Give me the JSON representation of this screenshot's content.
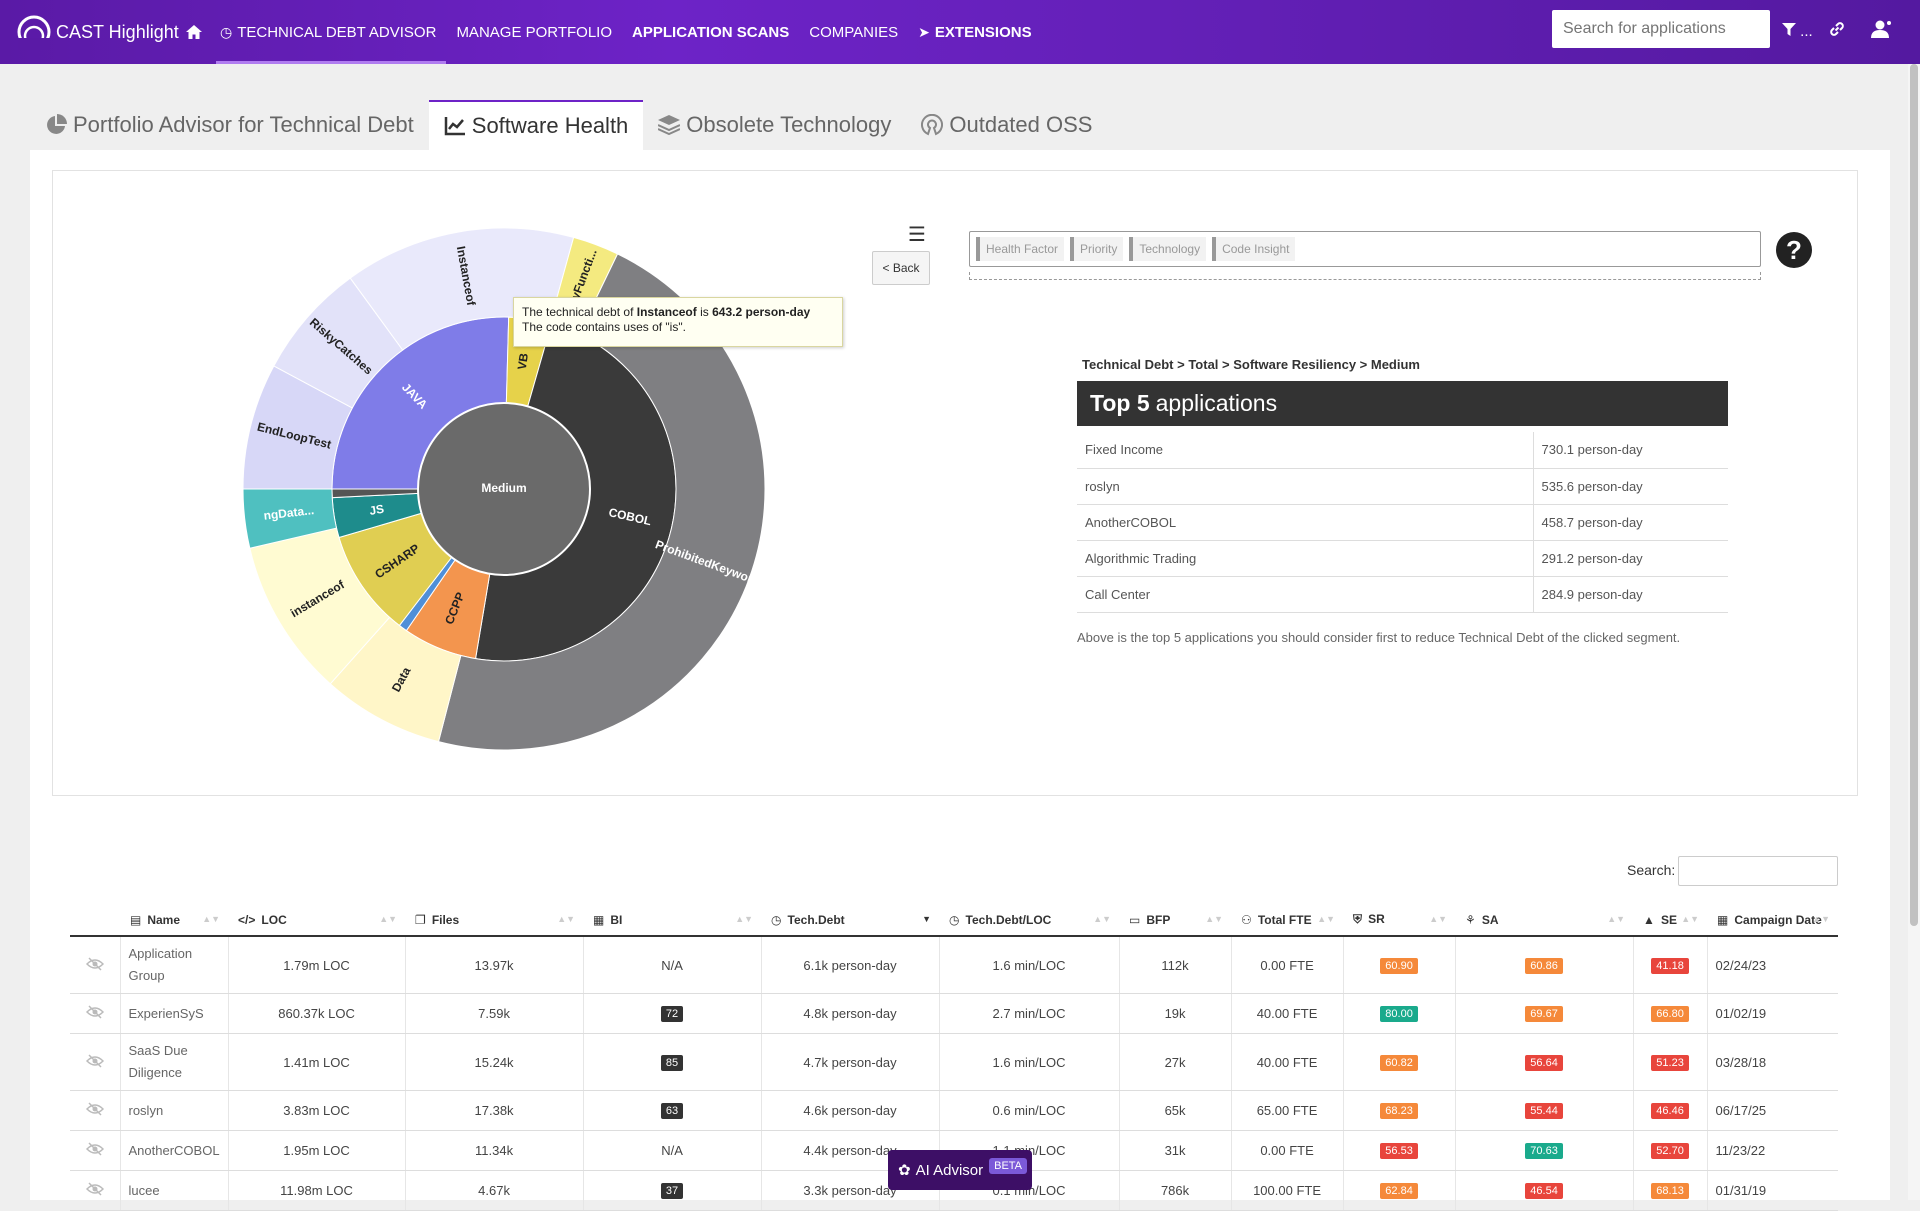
{
  "app": {
    "title": "CAST Highlight"
  },
  "nav": {
    "items": [
      {
        "label": "TECHNICAL DEBT ADVISOR",
        "active": true
      },
      {
        "label": "MANAGE PORTFOLIO"
      },
      {
        "label": "APPLICATION SCANS"
      },
      {
        "label": "COMPANIES"
      },
      {
        "label": "EXTENSIONS"
      }
    ],
    "search_placeholder": "Search for applications",
    "filter_suffix": "..."
  },
  "tabs": [
    {
      "label": "Portfolio Advisor for Technical Debt"
    },
    {
      "label": "Software Health",
      "active": true
    },
    {
      "label": "Obsolete Technology"
    },
    {
      "label": "Outdated OSS"
    }
  ],
  "chart_data": {
    "type": "sunburst",
    "center": "Medium",
    "inner_ring": [
      {
        "label": "JAVA",
        "value": 190,
        "color": "#7f7ce8"
      },
      {
        "label": "VB",
        "value": 30,
        "color": "#e6d24a"
      },
      {
        "label": "COBOL",
        "value": 360,
        "color": "#3a3a3a"
      },
      {
        "label": "CCPP",
        "value": 52,
        "color": "#f3954e"
      },
      {
        "label": "",
        "value": 6,
        "color": "#4f8fd8"
      },
      {
        "label": "CSHARP",
        "value": 75,
        "color": "#e0ce52"
      },
      {
        "label": "JS",
        "value": 28,
        "color": "#1e8c8c"
      },
      {
        "label": "",
        "value": 6,
        "color": "#555555"
      }
    ],
    "outer_ring": [
      {
        "label": "EndLoopTest",
        "value": 60,
        "color": "#d7d7f7"
      },
      {
        "label": "RiskyCatches",
        "value": 55,
        "color": "#e2e2f9"
      },
      {
        "label": "Instanceof",
        "value": 110,
        "color": "#e9e9fb"
      },
      {
        "label": "RiskyFuncti...",
        "value": 22,
        "color": "#f4ea80"
      },
      {
        "label": "ProhibitedKeyword",
        "value": 360,
        "color": "#7f7f82"
      },
      {
        "label": "Data",
        "value": 58,
        "color": "#fff6c8"
      },
      {
        "label": "instanceof",
        "value": 75,
        "color": "#fffbd2"
      },
      {
        "label": "ngData...",
        "value": 28,
        "color": "#4fc0c0"
      }
    ],
    "tooltip": {
      "prefix": "The technical debt of",
      "name": "Instanceof",
      "middle": "is",
      "value": "643.2 person-day",
      "description": "The code contains uses of \"is\"."
    }
  },
  "controls": {
    "back_label": "< Back",
    "chips": [
      "Health Factor",
      "Priority",
      "Technology",
      "Code Insight"
    ],
    "help": "?"
  },
  "top5": {
    "path": "Technical Debt > Total > Software Resiliency > Medium",
    "title_bold": "Top 5",
    "title_rest": "applications",
    "rows": [
      {
        "name": "Fixed Income",
        "value": "730.1 person-day"
      },
      {
        "name": "roslyn",
        "value": "535.6 person-day"
      },
      {
        "name": "AnotherCOBOL",
        "value": "458.7 person-day"
      },
      {
        "name": "Algorithmic Trading",
        "value": "291.2 person-day"
      },
      {
        "name": "Call Center",
        "value": "284.9 person-day"
      }
    ],
    "note": "Above is the top 5 applications you should consider first to reduce Technical Debt of the clicked segment."
  },
  "table": {
    "search_label": "Search:",
    "headers": [
      "Name",
      "LOC",
      "Files",
      "BI",
      "Tech.Debt",
      "Tech.Debt/LOC",
      "BFP",
      "Total FTE",
      "SR",
      "SA",
      "SE",
      "Campaign Date"
    ],
    "rows": [
      {
        "name": "Application Group",
        "loc": "1.79m LOC",
        "files": "13.97k",
        "bi": "N/A",
        "debt": "6.1k person-day",
        "debtloc": "1.6 min/LOC",
        "bfp": "112k",
        "fte": "0.00 FTE",
        "sr": "60.90",
        "sa": "60.86",
        "se": "41.18",
        "date": "02/24/23"
      },
      {
        "name": "ExperienSyS",
        "loc": "860.37k LOC",
        "files": "7.59k",
        "bi": "72",
        "debt": "4.8k person-day",
        "debtloc": "2.7 min/LOC",
        "bfp": "19k",
        "fte": "40.00 FTE",
        "sr": "80.00",
        "sa": "69.67",
        "se": "66.80",
        "date": "01/02/19"
      },
      {
        "name": "SaaS Due Diligence",
        "loc": "1.41m LOC",
        "files": "15.24k",
        "bi": "85",
        "debt": "4.7k person-day",
        "debtloc": "1.6 min/LOC",
        "bfp": "27k",
        "fte": "40.00 FTE",
        "sr": "60.82",
        "sa": "56.64",
        "se": "51.23",
        "date": "03/28/18"
      },
      {
        "name": "roslyn",
        "loc": "3.83m LOC",
        "files": "17.38k",
        "bi": "63",
        "debt": "4.6k person-day",
        "debtloc": "0.6 min/LOC",
        "bfp": "65k",
        "fte": "65.00 FTE",
        "sr": "68.23",
        "sa": "55.44",
        "se": "46.46",
        "date": "06/17/25"
      },
      {
        "name": "AnotherCOBOL",
        "loc": "1.95m LOC",
        "files": "11.34k",
        "bi": "N/A",
        "debt": "4.4k person-day",
        "debtloc": "1.1 min/LOC",
        "bfp": "31k",
        "fte": "0.00 FTE",
        "sr": "56.53",
        "sa": "70.63",
        "se": "52.70",
        "date": "11/23/22"
      },
      {
        "name": "lucee",
        "loc": "11.98m LOC",
        "files": "4.67k",
        "bi": "37",
        "debt": "3.3k person-day",
        "debtloc": "0.1 min/LOC",
        "bfp": "786k",
        "fte": "100.00 FTE",
        "sr": "62.84",
        "sa": "46.54",
        "se": "68.13",
        "date": "01/31/19"
      }
    ]
  },
  "ai_advisor": {
    "label": "AI Advisor",
    "badge": "BETA"
  }
}
